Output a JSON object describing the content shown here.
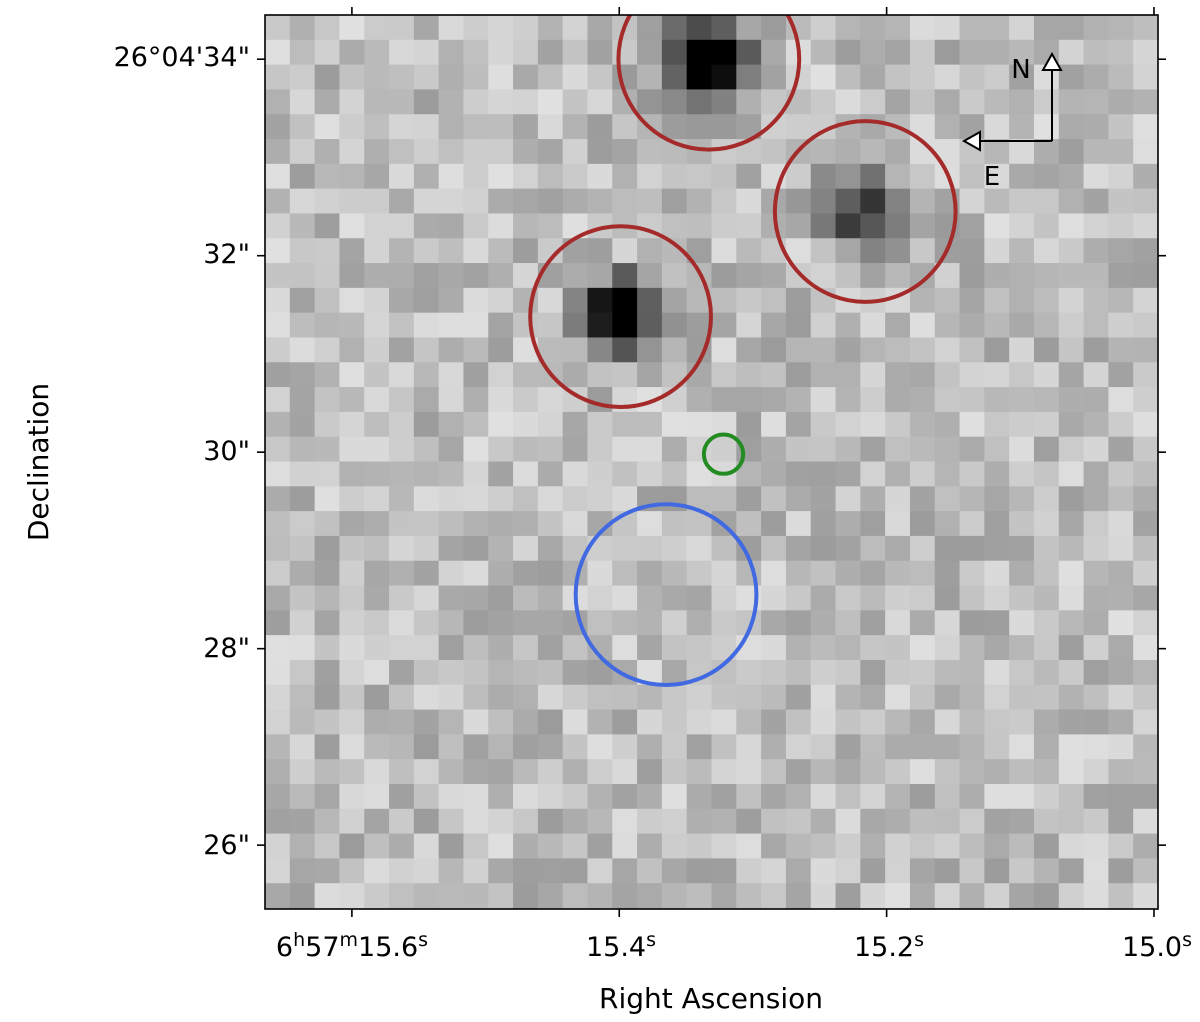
{
  "axes": {
    "xlabel": "Right Ascension",
    "ylabel": "Declination",
    "x_ticks": [
      {
        "label": "6h57m15.6s",
        "ra_s": 15.6
      },
      {
        "label": "15.4s",
        "ra_s": 15.4
      },
      {
        "label": "15.2s",
        "ra_s": 15.2
      },
      {
        "label": "15.0s",
        "ra_s": 15.0
      }
    ],
    "y_ticks": [
      {
        "label": "26°04'34\"",
        "dec_arcsec": 34
      },
      {
        "label": "32\"",
        "dec_arcsec": 32
      },
      {
        "label": "30\"",
        "dec_arcsec": 30
      },
      {
        "label": "28\"",
        "dec_arcsec": 28
      },
      {
        "label": "26\"",
        "dec_arcsec": 26
      }
    ],
    "ra_range_s": [
      15.665,
      14.997
    ],
    "dec_range_arcsec": [
      34.45,
      25.35
    ]
  },
  "compass": {
    "north_label": "N",
    "east_label": "E"
  },
  "markers": [
    {
      "name": "source-1",
      "ra_s": 15.333,
      "dec_arcsec": 34.0,
      "radius_arcsec": 0.92,
      "color": "#a52a2a"
    },
    {
      "name": "source-2",
      "ra_s": 15.216,
      "dec_arcsec": 32.45,
      "radius_arcsec": 0.92,
      "color": "#a52a2a"
    },
    {
      "name": "source-3",
      "ra_s": 15.399,
      "dec_arcsec": 31.38,
      "radius_arcsec": 0.92,
      "color": "#a52a2a"
    },
    {
      "name": "source-4",
      "ra_s": 15.365,
      "dec_arcsec": 28.55,
      "radius_arcsec": 0.92,
      "color": "#4169e1"
    },
    {
      "name": "source-5",
      "ra_s": 15.322,
      "dec_arcsec": 29.98,
      "radius_arcsec": 0.2,
      "color": "#228b22"
    }
  ]
}
